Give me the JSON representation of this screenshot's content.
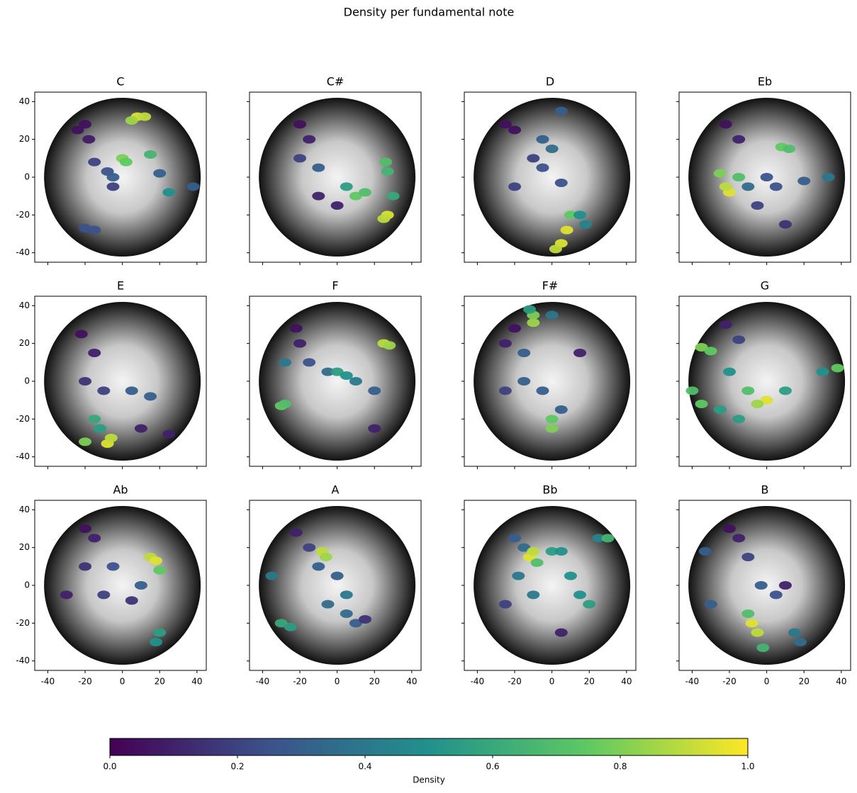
{
  "title": "Density per fundamental note",
  "colorbar": {
    "label": "Density",
    "lim": [
      0,
      1
    ],
    "ticks": [
      {
        "value": 0,
        "label": "0.0"
      },
      0.2,
      0.4,
      0.6,
      0.8,
      {
        "value": 1,
        "label": "1.0"
      }
    ],
    "colormap": [
      "#440154",
      "#3b528b",
      "#21918c",
      "#5ec962",
      "#fde725"
    ]
  },
  "chart_data": [
    {
      "type": "scatter",
      "title": "C",
      "xlim": [
        -47,
        45
      ],
      "ylim": [
        -45,
        45
      ],
      "xticks": [
        -40,
        -20,
        0,
        20,
        40
      ],
      "yticks": [
        -40,
        -20,
        0,
        20,
        40
      ],
      "x": [
        -20,
        -24,
        -18,
        -15,
        -8,
        -5,
        0,
        2,
        8,
        12,
        5,
        15,
        20,
        25,
        38,
        -20,
        -15,
        -5
      ],
      "y": [
        28,
        25,
        20,
        8,
        3,
        0,
        10,
        8,
        32,
        32,
        30,
        12,
        2,
        -8,
        -5,
        -27,
        -28,
        -5
      ],
      "values": [
        0.05,
        0.05,
        0.08,
        0.2,
        0.25,
        0.3,
        0.8,
        0.75,
        0.95,
        0.9,
        0.85,
        0.65,
        0.3,
        0.5,
        0.3,
        0.25,
        0.25,
        0.2
      ]
    },
    {
      "type": "scatter",
      "title": "C#",
      "xlim": [
        -47,
        45
      ],
      "ylim": [
        -45,
        45
      ],
      "xticks": [
        -40,
        -20,
        0,
        20,
        40
      ],
      "yticks": [
        -40,
        -20,
        0,
        20,
        40
      ],
      "x": [
        -20,
        -15,
        -20,
        -10,
        10,
        15,
        5,
        26,
        27,
        30,
        27,
        25,
        0,
        -10
      ],
      "y": [
        28,
        20,
        10,
        5,
        -10,
        -8,
        -5,
        8,
        3,
        -10,
        -20,
        -22,
        -15,
        -10
      ],
      "values": [
        0.05,
        0.1,
        0.2,
        0.3,
        0.75,
        0.7,
        0.55,
        0.7,
        0.65,
        0.6,
        0.95,
        0.9,
        0.1,
        0.1
      ]
    },
    {
      "type": "scatter",
      "title": "D",
      "xlim": [
        -47,
        45
      ],
      "ylim": [
        -45,
        45
      ],
      "xticks": [
        -40,
        -20,
        0,
        20,
        40
      ],
      "yticks": [
        -40,
        -20,
        0,
        20,
        40
      ],
      "x": [
        -25,
        -20,
        -10,
        -5,
        5,
        0,
        -5,
        10,
        8,
        5,
        2,
        15,
        18,
        -20,
        5
      ],
      "y": [
        28,
        25,
        10,
        5,
        -3,
        15,
        20,
        -20,
        -28,
        -35,
        -38,
        -20,
        -25,
        -5,
        35
      ],
      "values": [
        0.05,
        0.05,
        0.2,
        0.25,
        0.25,
        0.35,
        0.3,
        0.75,
        0.95,
        0.95,
        0.9,
        0.5,
        0.45,
        0.2,
        0.3
      ]
    },
    {
      "type": "scatter",
      "title": "Eb",
      "xlim": [
        -47,
        45
      ],
      "ylim": [
        -45,
        45
      ],
      "xticks": [
        -40,
        -20,
        0,
        20,
        40
      ],
      "yticks": [
        -40,
        -20,
        0,
        20,
        40
      ],
      "x": [
        -22,
        -15,
        -25,
        -20,
        -22,
        -15,
        -10,
        0,
        5,
        8,
        12,
        20,
        33,
        10,
        -5
      ],
      "y": [
        28,
        20,
        2,
        -8,
        -5,
        0,
        -5,
        0,
        -5,
        16,
        15,
        -2,
        0,
        -25,
        -15
      ],
      "values": [
        0.05,
        0.1,
        0.8,
        0.95,
        0.9,
        0.7,
        0.35,
        0.25,
        0.25,
        0.75,
        0.7,
        0.3,
        0.4,
        0.15,
        0.2
      ]
    },
    {
      "type": "scatter",
      "title": "E",
      "xlim": [
        -47,
        45
      ],
      "ylim": [
        -45,
        45
      ],
      "xticks": [
        -40,
        -20,
        0,
        20,
        40
      ],
      "yticks": [
        -40,
        -20,
        0,
        20,
        40
      ],
      "x": [
        -22,
        -15,
        -20,
        -10,
        5,
        15,
        -15,
        -12,
        -20,
        -8,
        -6,
        10,
        25
      ],
      "y": [
        25,
        15,
        0,
        -5,
        -5,
        -8,
        -20,
        -25,
        -32,
        -33,
        -30,
        -25,
        -28
      ],
      "values": [
        0.05,
        0.1,
        0.15,
        0.2,
        0.3,
        0.3,
        0.6,
        0.55,
        0.8,
        0.95,
        0.9,
        0.1,
        0.1
      ]
    },
    {
      "type": "scatter",
      "title": "F",
      "xlim": [
        -47,
        45
      ],
      "ylim": [
        -45,
        45
      ],
      "xticks": [
        -40,
        -20,
        0,
        20,
        40
      ],
      "yticks": [
        -40,
        -20,
        0,
        20,
        40
      ],
      "x": [
        -22,
        -20,
        -15,
        -5,
        0,
        5,
        10,
        20,
        25,
        28,
        -30,
        -28,
        -28,
        20
      ],
      "y": [
        28,
        20,
        10,
        5,
        5,
        3,
        0,
        -5,
        20,
        19,
        -13,
        -12,
        10,
        -25
      ],
      "values": [
        0.05,
        0.1,
        0.25,
        0.35,
        0.55,
        0.5,
        0.4,
        0.3,
        0.9,
        0.85,
        0.75,
        0.7,
        0.4,
        0.1
      ]
    },
    {
      "type": "scatter",
      "title": "F#",
      "xlim": [
        -47,
        45
      ],
      "ylim": [
        -45,
        45
      ],
      "xticks": [
        -40,
        -20,
        0,
        20,
        40
      ],
      "yticks": [
        -40,
        -20,
        0,
        20,
        40
      ],
      "x": [
        -20,
        -25,
        -10,
        -10,
        -12,
        0,
        -15,
        -15,
        -5,
        5,
        0,
        0,
        15,
        -25
      ],
      "y": [
        28,
        20,
        31,
        35,
        38,
        35,
        15,
        0,
        -5,
        -15,
        -25,
        -20,
        15,
        -5
      ],
      "values": [
        0.05,
        0.1,
        0.85,
        0.8,
        0.55,
        0.4,
        0.3,
        0.3,
        0.3,
        0.3,
        0.8,
        0.75,
        0.1,
        0.2
      ]
    },
    {
      "type": "scatter",
      "title": "G",
      "xlim": [
        -47,
        45
      ],
      "ylim": [
        -45,
        45
      ],
      "xticks": [
        -40,
        -20,
        0,
        20,
        40
      ],
      "yticks": [
        -40,
        -20,
        0,
        20,
        40
      ],
      "x": [
        -22,
        -15,
        -35,
        -30,
        -20,
        -40,
        -35,
        -10,
        0,
        -5,
        10,
        30,
        38,
        -15,
        -25
      ],
      "y": [
        30,
        22,
        18,
        16,
        5,
        -5,
        -12,
        -5,
        -10,
        -12,
        -5,
        5,
        7,
        -20,
        -15
      ],
      "values": [
        0.1,
        0.2,
        0.8,
        0.75,
        0.5,
        0.7,
        0.75,
        0.7,
        0.95,
        0.85,
        0.55,
        0.5,
        0.75,
        0.55,
        0.55
      ]
    },
    {
      "type": "scatter",
      "title": "Ab",
      "xlim": [
        -47,
        45
      ],
      "ylim": [
        -45,
        45
      ],
      "xticks": [
        -40,
        -20,
        0,
        20,
        40
      ],
      "yticks": [
        -40,
        -20,
        0,
        20,
        40
      ],
      "x": [
        -20,
        -15,
        -20,
        -10,
        5,
        10,
        15,
        18,
        20,
        20,
        18,
        -5,
        -30
      ],
      "y": [
        30,
        25,
        10,
        -5,
        -8,
        0,
        15,
        13,
        8,
        -25,
        -30,
        10,
        -5
      ],
      "values": [
        0.05,
        0.1,
        0.15,
        0.2,
        0.15,
        0.3,
        0.9,
        0.95,
        0.75,
        0.55,
        0.5,
        0.25,
        0.1
      ]
    },
    {
      "type": "scatter",
      "title": "A",
      "xlim": [
        -47,
        45
      ],
      "ylim": [
        -45,
        45
      ],
      "xticks": [
        -40,
        -20,
        0,
        20,
        40
      ],
      "yticks": [
        -40,
        -20,
        0,
        20,
        40
      ],
      "x": [
        -22,
        -15,
        -8,
        -6,
        -35,
        -30,
        -25,
        -10,
        0,
        -5,
        5,
        5,
        10,
        15
      ],
      "y": [
        28,
        20,
        18,
        15,
        5,
        -20,
        -22,
        10,
        5,
        -10,
        -5,
        -15,
        -20,
        -18
      ],
      "values": [
        0.1,
        0.2,
        0.9,
        0.85,
        0.4,
        0.6,
        0.55,
        0.3,
        0.3,
        0.35,
        0.4,
        0.35,
        0.3,
        0.15
      ]
    },
    {
      "type": "scatter",
      "title": "Bb",
      "xlim": [
        -47,
        45
      ],
      "ylim": [
        -45,
        45
      ],
      "xticks": [
        -40,
        -20,
        0,
        20,
        40
      ],
      "yticks": [
        -40,
        -20,
        0,
        20,
        40
      ],
      "x": [
        -20,
        -15,
        -12,
        -10,
        -8,
        -18,
        -10,
        0,
        5,
        10,
        20,
        15,
        25,
        30,
        -25,
        5
      ],
      "y": [
        25,
        20,
        15,
        18,
        12,
        5,
        -5,
        18,
        18,
        5,
        -10,
        -5,
        25,
        25,
        -10,
        -25
      ],
      "values": [
        0.3,
        0.35,
        0.95,
        0.9,
        0.7,
        0.4,
        0.4,
        0.55,
        0.5,
        0.5,
        0.55,
        0.5,
        0.45,
        0.65,
        0.2,
        0.1
      ]
    },
    {
      "type": "scatter",
      "title": "B",
      "xlim": [
        -47,
        45
      ],
      "ylim": [
        -45,
        45
      ],
      "xticks": [
        -40,
        -20,
        0,
        20,
        40
      ],
      "yticks": [
        -40,
        -20,
        0,
        20,
        40
      ],
      "x": [
        -20,
        -15,
        -10,
        -33,
        -3,
        5,
        -10,
        -8,
        -5,
        -2,
        15,
        18,
        -30,
        10
      ],
      "y": [
        30,
        25,
        15,
        18,
        0,
        -5,
        -15,
        -20,
        -25,
        -33,
        -25,
        -30,
        -10,
        0
      ],
      "values": [
        0.05,
        0.1,
        0.2,
        0.3,
        0.3,
        0.25,
        0.7,
        0.95,
        0.9,
        0.65,
        0.4,
        0.35,
        0.3,
        0.1
      ]
    }
  ]
}
